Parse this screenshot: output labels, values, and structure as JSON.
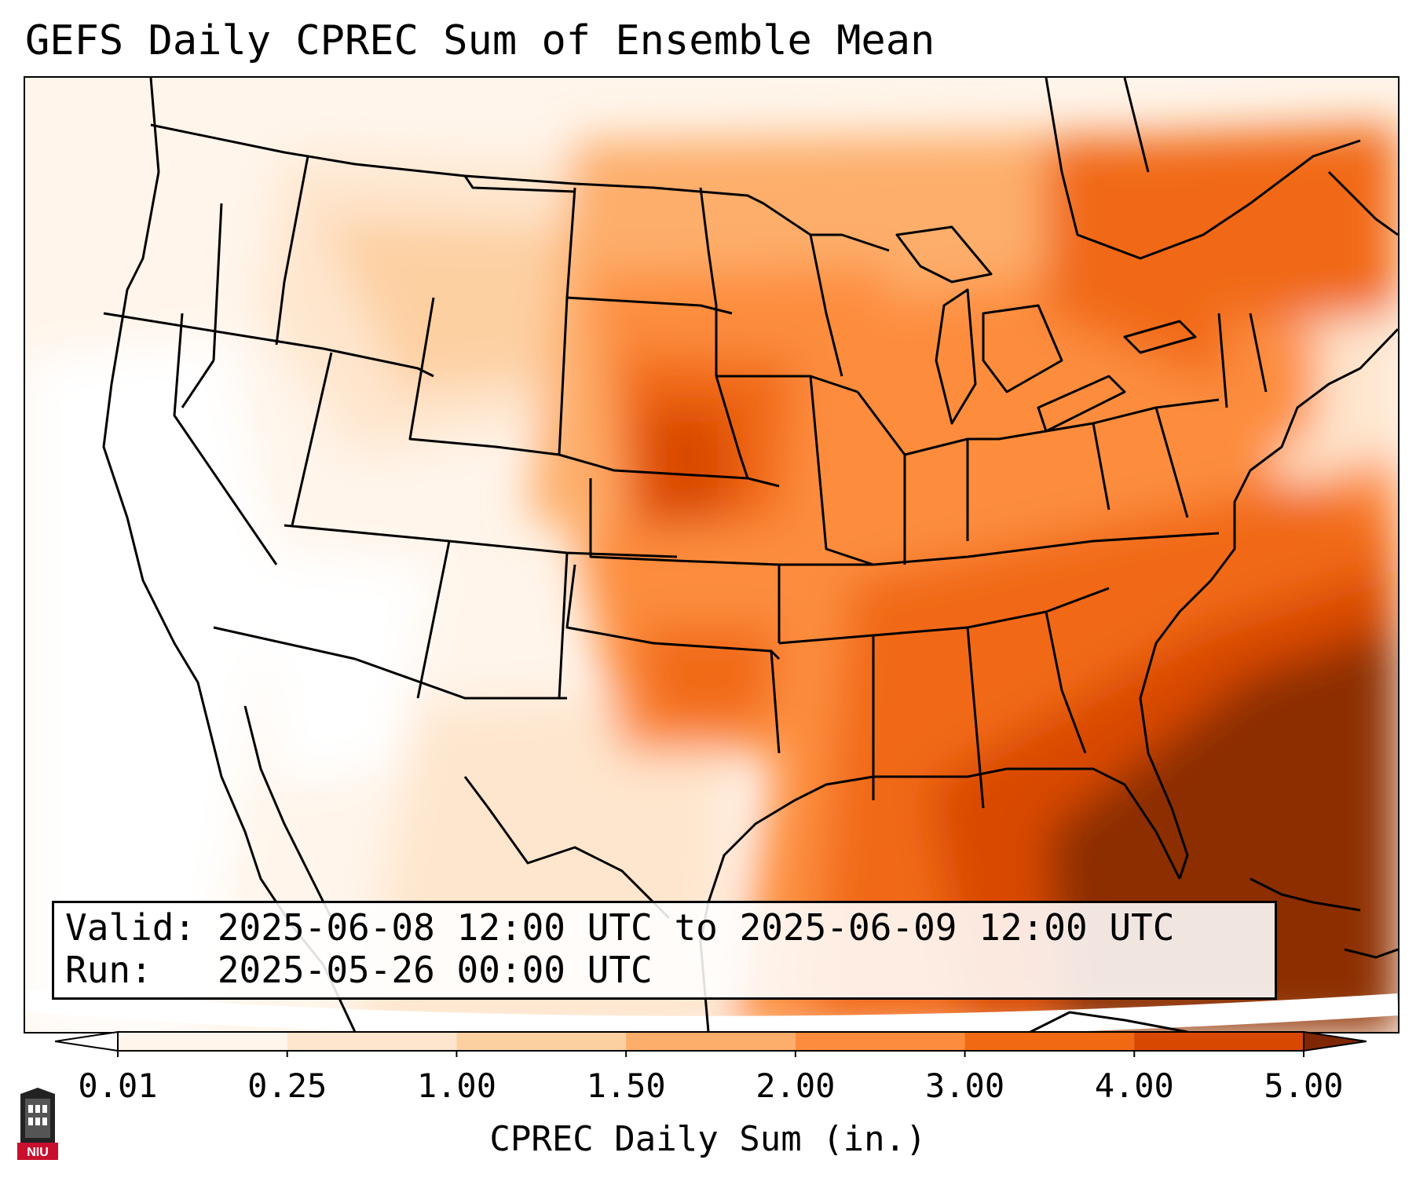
{
  "title": "GEFS Daily CPREC Sum of Ensemble Mean",
  "info": {
    "valid_line": "Valid: 2025-06-08 12:00 UTC to 2025-06-09 12:00 UTC",
    "run_line": "Run:   2025-05-26 00:00 UTC"
  },
  "colorbar": {
    "label": "CPREC Daily Sum (in.)",
    "ticks": [
      "0.01",
      "0.25",
      "1.00",
      "1.50",
      "2.00",
      "3.00",
      "4.00",
      "5.00"
    ],
    "colors": [
      "#fff5eb",
      "#fee6ce",
      "#fdd0a2",
      "#fdae6b",
      "#fd8d3c",
      "#f16913",
      "#d94801",
      "#8c2d04"
    ],
    "under_color": "#ffffff",
    "over_color": "#7f2704"
  },
  "logo": {
    "text": "NIU",
    "brand_color": "#c8102e"
  },
  "map": {
    "region": "Contiguous United States",
    "palette_background": "#fff5eb"
  }
}
